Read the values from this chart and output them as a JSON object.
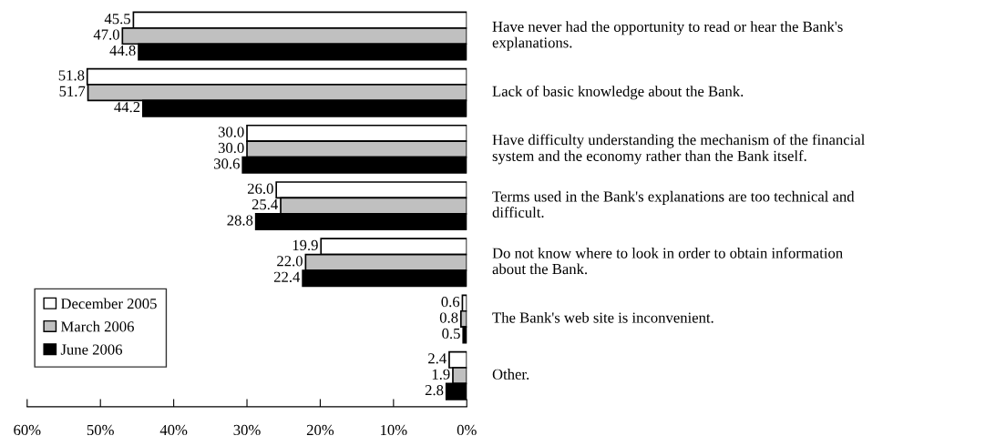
{
  "chart_data": {
    "type": "bar",
    "orientation": "horizontal",
    "categories": [
      "Have never had the opportunity to read or hear the Bank's\nexplanations.",
      "Lack of basic knowledge about the Bank.",
      "Have difficulty understanding the mechanism of the financial\nsystem and the economy rather than the Bank itself.",
      "Terms used in the Bank's explanations are too technical and\ndifficult.",
      "Do not know where to look in order to obtain information\nabout the Bank.",
      "The Bank's web site is inconvenient.",
      "Other."
    ],
    "series": [
      {
        "name": "December 2005",
        "color": "#ffffff",
        "values": [
          45.5,
          51.8,
          30.0,
          26.0,
          19.9,
          0.6,
          2.4
        ],
        "value_labels": [
          "45.5",
          "51.8",
          "30.0",
          "26.0",
          "19.9",
          "0.6",
          "2.4"
        ]
      },
      {
        "name": "March 2006",
        "color": "#c0c0c0",
        "values": [
          47.0,
          51.7,
          30.0,
          25.4,
          22.0,
          0.8,
          1.9
        ],
        "value_labels": [
          "47.0",
          "51.7",
          "30.0",
          "25.4",
          "22.0",
          "0.8",
          "1.9"
        ]
      },
      {
        "name": "June 2006",
        "color": "#000000",
        "values": [
          44.8,
          44.2,
          30.6,
          28.8,
          22.4,
          0.5,
          2.8
        ],
        "value_labels": [
          "44.8",
          "44.2",
          "30.6",
          "28.8",
          "22.4",
          "0.5",
          "2.8"
        ]
      }
    ],
    "xlim": [
      60,
      0
    ],
    "xticks": [
      {
        "value": 60,
        "label": "60%"
      },
      {
        "value": 50,
        "label": "50%"
      },
      {
        "value": 40,
        "label": "40%"
      },
      {
        "value": 30,
        "label": "30%"
      },
      {
        "value": 20,
        "label": "20%"
      },
      {
        "value": 10,
        "label": "10%"
      },
      {
        "value": 0,
        "label": "0%"
      }
    ],
    "legend": "bottom left",
    "grid": false
  }
}
